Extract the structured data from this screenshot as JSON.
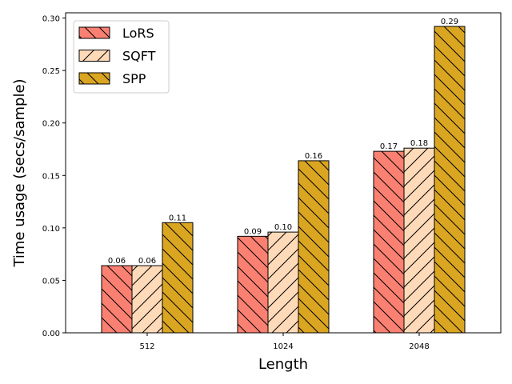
{
  "chart_data": {
    "type": "bar",
    "xlabel": "Length",
    "ylabel": "Time usage (secs/sample)",
    "categories": [
      "512",
      "1024",
      "2048"
    ],
    "series": [
      {
        "name": "LoRS",
        "values": [
          0.064,
          0.092,
          0.173
        ],
        "labels": [
          "0.06",
          "0.09",
          "0.17"
        ],
        "color": "#fa8072",
        "hatch": "backslash"
      },
      {
        "name": "SQFT",
        "values": [
          0.064,
          0.096,
          0.176
        ],
        "labels": [
          "0.06",
          "0.10",
          "0.18"
        ],
        "color": "#ffdab9",
        "hatch": "slash"
      },
      {
        "name": "SPP",
        "values": [
          0.105,
          0.164,
          0.292
        ],
        "labels": [
          "0.11",
          "0.16",
          "0.29"
        ],
        "color": "#daa520",
        "hatch": "backslash"
      }
    ],
    "ylim": [
      0,
      0.305
    ],
    "yticks": [
      "0.00",
      "0.05",
      "0.10",
      "0.15",
      "0.20",
      "0.25",
      "0.30"
    ],
    "grid": false,
    "legend_position": "top-left"
  }
}
